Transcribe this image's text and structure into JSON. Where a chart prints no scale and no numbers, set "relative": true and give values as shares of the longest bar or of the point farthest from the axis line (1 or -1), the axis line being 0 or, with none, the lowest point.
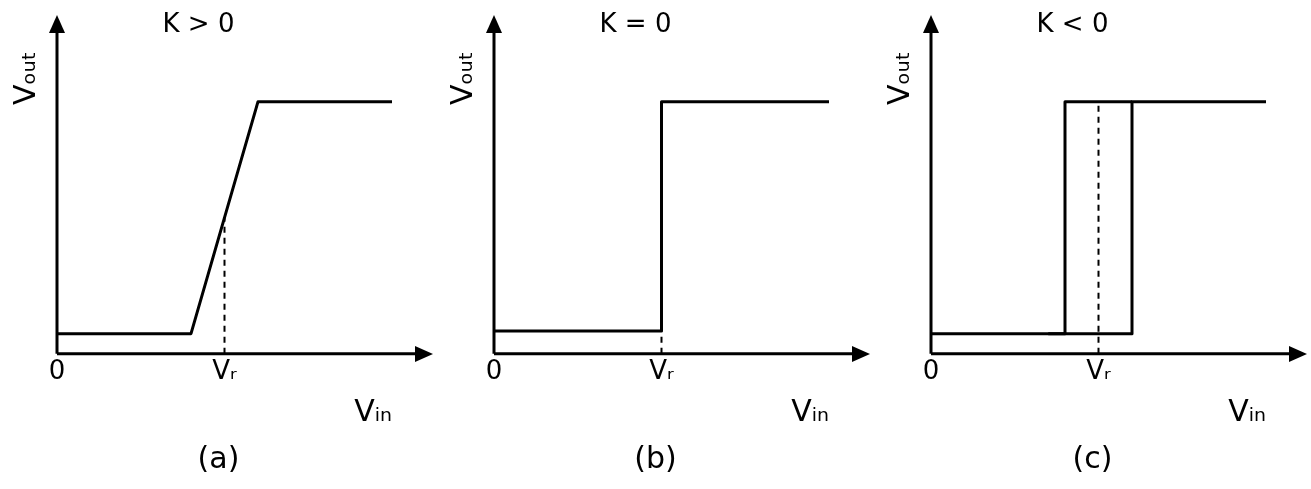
{
  "chart_data": [
    {
      "type": "line",
      "title": "K > 0",
      "xlabel": "Vᵢₙ",
      "ylabel": "Vₒᵤₜ",
      "annotations": [
        "(a)"
      ],
      "relative": true,
      "marker": "none",
      "categories": [
        "0",
        null,
        null,
        null,
        null,
        null,
        null,
        null,
        null,
        null,
        "Vᵣ",
        null,
        null,
        null,
        null,
        null,
        null,
        null,
        null,
        null,
        null
      ],
      "ref_lines": [
        {
          "axis": "x",
          "value": "Vᵣ",
          "line_style": "dashed",
          "color": "#000000"
        }
      ],
      "series": [
        {
          "color": "#000000",
          "values": [
            0.08,
            0.08,
            0.08,
            0.08,
            0.08,
            0.08,
            0.08,
            0.08,
            0.08,
            0.31,
            0.54,
            0.77,
            1,
            1,
            1,
            1,
            1,
            1,
            1,
            1,
            1
          ]
        }
      ]
    },
    {
      "type": "step",
      "title": "K = 0",
      "xlabel": "Vᵢₙ",
      "ylabel": "Vₒᵤₜ",
      "annotations": [
        "(b)"
      ],
      "relative": true,
      "marker": "none",
      "categories": [
        "0",
        null,
        null,
        null,
        null,
        null,
        null,
        null,
        null,
        null,
        "Vᵣ",
        null,
        null,
        null,
        null,
        null,
        null,
        null,
        null,
        null,
        null
      ],
      "ref_lines": [
        {
          "axis": "x",
          "value": "Vᵣ",
          "line_style": "dashed",
          "color": "#000000"
        }
      ],
      "series": [
        {
          "color": "#000000",
          "values": [
            0.09,
            0.09,
            0.09,
            0.09,
            0.09,
            0.09,
            0.09,
            0.09,
            0.09,
            0.09,
            1,
            1,
            1,
            1,
            1,
            1,
            1,
            1,
            1,
            1,
            1
          ]
        }
      ]
    },
    {
      "type": "step",
      "title": "K < 0",
      "xlabel": "Vᵢₙ",
      "ylabel": "Vₒᵤₜ",
      "annotations": [
        "(c)"
      ],
      "relative": true,
      "marker": "none",
      "categories": [
        "0",
        null,
        null,
        null,
        null,
        null,
        null,
        null,
        null,
        null,
        "Vᵣ",
        null,
        null,
        null,
        null,
        null,
        null,
        null,
        null,
        null,
        null
      ],
      "ref_lines": [
        {
          "axis": "x",
          "value": "Vᵣ",
          "line_style": "dashed",
          "color": "#000000"
        }
      ],
      "series": [
        {
          "color": "#000000",
          "values": [
            0.08,
            0.08,
            0.08,
            0.08,
            0.08,
            0.08,
            0.08,
            0.08,
            0.08,
            0.08,
            0.08,
            0.08,
            1,
            1,
            1,
            1,
            1,
            1,
            1,
            1,
            1
          ]
        },
        {
          "color": "#000000",
          "values": [
            null,
            null,
            null,
            null,
            null,
            null,
            null,
            0.08,
            1,
            1,
            1,
            1,
            1,
            null,
            null,
            null,
            null,
            null,
            null,
            null,
            null
          ]
        }
      ]
    }
  ]
}
